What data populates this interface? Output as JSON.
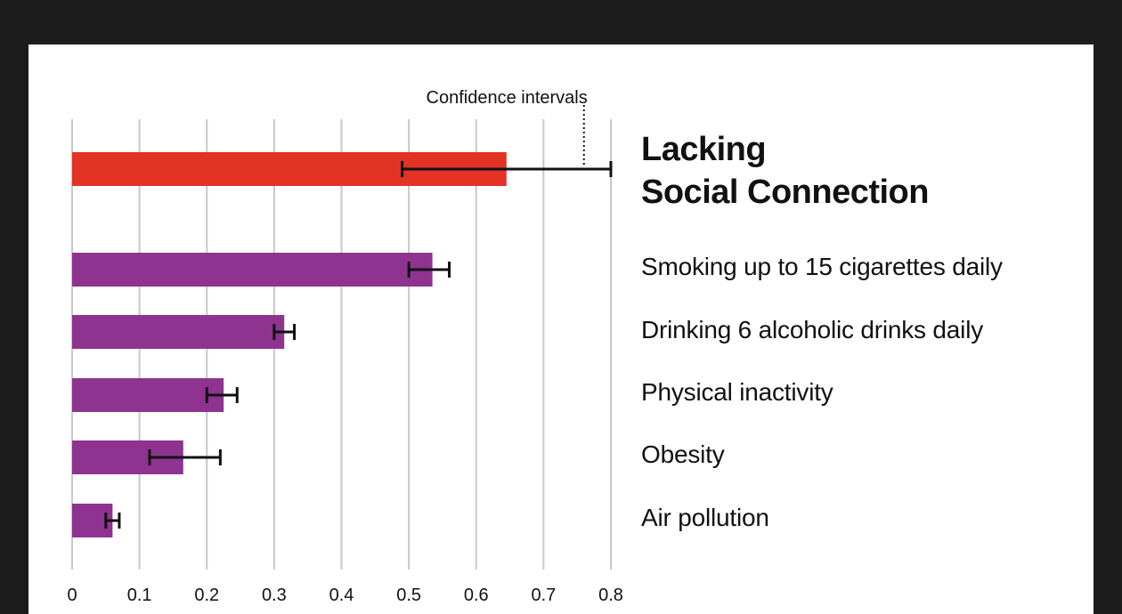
{
  "colors": {
    "background": "#1c1c1c",
    "panel": "#ffffff",
    "highlight_bar": "#e23325",
    "bar": "#8e3390",
    "grid": "#c8c8c8",
    "error_bar": "#111111"
  },
  "chart_data": {
    "type": "bar",
    "orientation": "horizontal",
    "annotation": "Confidence intervals",
    "xlim": [
      0,
      0.8
    ],
    "xticks": [
      "0",
      "0.1",
      "0.2",
      "0.3",
      "0.4",
      "0.5",
      "0.6",
      "0.7",
      "0.8"
    ],
    "grid": true,
    "bars": [
      {
        "label_lines": [
          "Lacking",
          "Social Connection"
        ],
        "value": 0.645,
        "ci": [
          0.49,
          0.8
        ],
        "highlight": true
      },
      {
        "label": "Smoking up to 15 cigarettes daily",
        "value": 0.535,
        "ci": [
          0.5,
          0.56
        ],
        "highlight": false
      },
      {
        "label": "Drinking 6 alcoholic drinks daily",
        "value": 0.315,
        "ci": [
          0.3,
          0.33
        ],
        "highlight": false
      },
      {
        "label": "Physical inactivity",
        "value": 0.225,
        "ci": [
          0.2,
          0.245
        ],
        "highlight": false
      },
      {
        "label": "Obesity",
        "value": 0.165,
        "ci": [
          0.115,
          0.22
        ],
        "highlight": false
      },
      {
        "label": "Air pollution",
        "value": 0.06,
        "ci": [
          0.05,
          0.07
        ],
        "highlight": false
      }
    ]
  }
}
